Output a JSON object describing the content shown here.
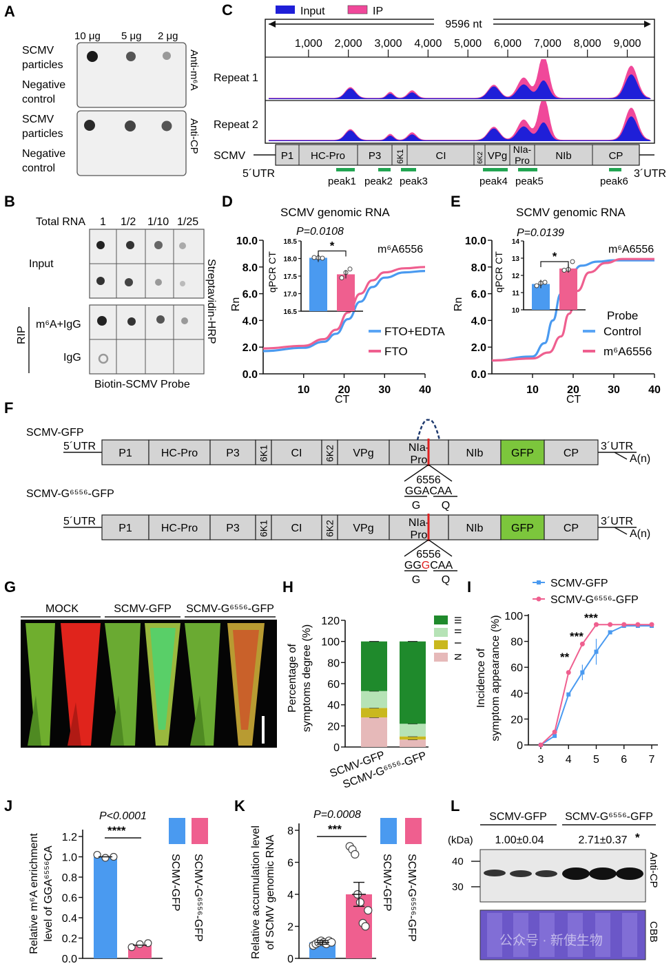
{
  "panels": {
    "A": {
      "label": "A",
      "amounts": [
        "10 μg",
        "5 μg",
        "2 μg"
      ],
      "rows": [
        "SCMV",
        "particles",
        "Negative",
        "control",
        "SCMV",
        "particles",
        "Negative",
        "control"
      ],
      "blot1": "Anti-m⁶A",
      "blot2": "Anti-CP"
    },
    "B": {
      "label": "B",
      "header": "Total RNA",
      "dilutions": [
        "1",
        "1/2",
        "1/10",
        "1/25"
      ],
      "rows": [
        "Input",
        "m⁶A+IgG",
        "IgG"
      ],
      "group": "RIP",
      "side": "Streptavidin-HRP",
      "bottom": "Biotin-SCMV Probe"
    },
    "C": {
      "label": "C",
      "legend": [
        "Input",
        "IP"
      ],
      "length": "9596 nt",
      "ticks": [
        "1,000",
        "2,000",
        "3,000",
        "4,000",
        "5,000",
        "6,000",
        "7,000",
        "8,000",
        "9,000"
      ],
      "tracks": [
        "Repeat 1",
        "Repeat 2"
      ],
      "genome_label": "SCMV",
      "utr5": "5´UTR",
      "utr3": "3´UTR",
      "genes": [
        "P1",
        "HC-Pro",
        "P3",
        "6K1",
        "CI",
        "6K2",
        "VPg",
        "NIa-",
        "Pro",
        "NIb",
        "CP"
      ],
      "peaks": [
        "peak1",
        "peak2",
        "peak3",
        "peak4",
        "peak5",
        "peak6"
      ],
      "colors": {
        "input": "#1f1fd8",
        "ip": "#f0489a"
      }
    },
    "D": {
      "label": "D",
      "title": "SCMV genomic RNA",
      "pval": "P=0.0108",
      "star": "*",
      "site": "m⁶A6556",
      "ylabel": "Rn",
      "xlabel": "CT",
      "inset_ylabel": "qPCR CT",
      "yticks": [
        "10.0",
        "8.0",
        "6.0",
        "4.0",
        "2.0",
        "0.0"
      ],
      "xticks": [
        "10",
        "20",
        "30",
        "40"
      ],
      "inset_yticks": [
        "18.5",
        "18.0",
        "17.5",
        "17.0",
        "16.5"
      ],
      "legend": [
        "FTO+EDTA",
        "FTO"
      ]
    },
    "E": {
      "label": "E",
      "title": "SCMV genomic RNA",
      "pval": "P=0.0139",
      "star": "*",
      "site": "m⁶A6556",
      "ylabel": "Rn",
      "xlabel": "CT",
      "inset_ylabel": "qPCR CT",
      "yticks": [
        "10.0",
        "8.0",
        "6.0",
        "4.0",
        "2.0",
        "0.0"
      ],
      "xticks": [
        "10",
        "20",
        "30",
        "40"
      ],
      "inset_yticks": [
        "14",
        "13",
        "12",
        "11",
        "10"
      ],
      "legend_title": "Probe",
      "legend": [
        "Control",
        "m⁶A6556"
      ]
    },
    "F": {
      "label": "F",
      "construct1": "SCMV-GFP",
      "construct2": "SCMV-G⁶⁵⁵⁶-GFP",
      "utr5": "5´UTR",
      "utr3": "3´UTR",
      "polyA": "A(n)",
      "genes": [
        "P1",
        "HC-Pro",
        "P3",
        "6K1",
        "CI",
        "6K2",
        "VPg",
        "NIa-",
        "Pro",
        "NIb",
        "GFP",
        "CP"
      ],
      "position": "6556",
      "seq_wt": "GGACAA",
      "seq_mut_a": "GG",
      "seq_mut_b": "G",
      "seq_mut_c": "CAA",
      "codons": [
        "G",
        "Q"
      ]
    },
    "G": {
      "label": "G",
      "groups": [
        "MOCK",
        "SCMV-GFP",
        "SCMV-G⁶⁵⁵⁶-GFP"
      ]
    },
    "H": {
      "label": "H",
      "ylabel1": "Percentage of",
      "ylabel2": "symptoms degree (%)",
      "yticks": [
        "120",
        "100",
        "80",
        "60",
        "40",
        "20",
        "0"
      ],
      "categories": [
        "SCMV-GFP",
        "SCMV-G⁶⁵⁵⁶-GFP"
      ],
      "legend": [
        "III",
        "II",
        "I",
        "N"
      ],
      "colors": {
        "III": "#1f8a2c",
        "II": "#b6e3b6",
        "I": "#c9b81e",
        "N": "#e6b9b9"
      }
    },
    "I": {
      "label": "I",
      "legend": [
        "SCMV-GFP",
        "SCMV-G⁶⁵⁵⁶-GFP"
      ],
      "ylabel1": "Incidence of",
      "ylabel2": "symptom appearance (%)",
      "yticks": [
        "100",
        "80",
        "60",
        "40",
        "20",
        "0"
      ],
      "xticks": [
        "3",
        "4",
        "5",
        "6",
        "7"
      ],
      "stars": [
        "**",
        "***",
        "***"
      ]
    },
    "J": {
      "label": "J",
      "pval": "P<0.0001",
      "stars": "****",
      "ylabel1": "Relative m⁶A enrichment",
      "ylabel2": "level of GGA⁶⁵⁵⁶CA",
      "yticks": [
        "1.2",
        "1.0",
        "0.8",
        "0.6",
        "0.4",
        "0.2",
        "0.0"
      ],
      "legend": [
        "SCMV-GFP",
        "SCMV-G⁶⁵⁵⁶-GFP"
      ]
    },
    "K": {
      "label": "K",
      "pval": "P=0.0008",
      "stars": "***",
      "ylabel1": "Relative accumulation level",
      "ylabel2": "of SCMV genomic RNA",
      "yticks": [
        "8",
        "6",
        "4",
        "2",
        "0"
      ],
      "legend": [
        "SCMV-GFP",
        "SCMV-G⁶⁵⁵⁶-GFP"
      ]
    },
    "L": {
      "label": "L",
      "groups": [
        "SCMV-GFP",
        "SCMV-G⁶⁵⁵⁶-GFP"
      ],
      "unit": "(kDa)",
      "quant": [
        "1.00±0.04",
        "2.71±0.37"
      ],
      "star": "*",
      "markers": [
        "40",
        "30"
      ],
      "blots": [
        "Anti-CP",
        "CBB"
      ],
      "watermark": "公众号 · 新使生物"
    }
  },
  "chart_data": [
    {
      "type": "line",
      "panel": "D",
      "title": "SCMV genomic RNA",
      "xlabel": "CT",
      "ylabel": "Rn",
      "xlim": [
        0,
        40
      ],
      "ylim": [
        0,
        10
      ],
      "series": [
        {
          "name": "FTO+EDTA",
          "x": [
            0,
            10,
            15,
            18,
            21,
            24,
            27,
            30,
            35,
            40
          ],
          "y": [
            1.7,
            1.95,
            2.4,
            3.0,
            4.1,
            5.4,
            6.5,
            7.2,
            7.6,
            7.7
          ]
        },
        {
          "name": "FTO",
          "x": [
            0,
            10,
            15,
            18,
            21,
            24,
            27,
            30,
            35,
            40
          ],
          "y": [
            1.9,
            2.1,
            2.6,
            3.3,
            4.6,
            6.0,
            7.0,
            7.6,
            7.9,
            8.0
          ]
        }
      ],
      "inset": {
        "type": "bar",
        "ylabel": "qPCR CT",
        "ylim": [
          16.5,
          18.5
        ],
        "categories": [
          "FTO+EDTA",
          "FTO"
        ],
        "values": [
          18.02,
          17.55
        ],
        "points": [
          [
            18.03,
            18.02,
            18.01
          ],
          [
            17.45,
            17.6,
            17.7
          ]
        ],
        "p_value": "P=0.0108"
      }
    },
    {
      "type": "line",
      "panel": "E",
      "title": "SCMV genomic RNA",
      "xlabel": "CT",
      "ylabel": "Rn",
      "xlim": [
        0,
        40
      ],
      "ylim": [
        0,
        10
      ],
      "series": [
        {
          "name": "Control",
          "x": [
            0,
            10,
            13,
            15,
            17,
            19,
            22,
            26,
            30,
            40
          ],
          "y": [
            1.0,
            1.3,
            2.3,
            4.0,
            6.0,
            7.3,
            8.1,
            8.4,
            8.5,
            8.5
          ]
        },
        {
          "name": "m⁶A6556",
          "x": [
            0,
            10,
            14,
            17,
            19,
            21,
            24,
            28,
            32,
            40
          ],
          "y": [
            1.0,
            1.15,
            1.6,
            2.8,
            4.5,
            6.2,
            7.6,
            8.3,
            8.6,
            8.6
          ]
        }
      ],
      "inset": {
        "type": "bar",
        "ylabel": "qPCR CT",
        "ylim": [
          10,
          14
        ],
        "categories": [
          "Control",
          "m⁶A6556"
        ],
        "values": [
          11.5,
          12.4
        ],
        "points": [
          [
            11.4,
            11.55,
            11.6
          ],
          [
            12.3,
            12.35,
            12.8
          ]
        ],
        "p_value": "P=0.0139"
      }
    },
    {
      "type": "bar",
      "panel": "H",
      "stacked": true,
      "ylabel": "Percentage of symptoms degree (%)",
      "ylim": [
        0,
        120
      ],
      "categories": [
        "SCMV-GFP",
        "SCMV-G⁶⁵⁵⁶-GFP"
      ],
      "series": [
        {
          "name": "N",
          "values": [
            28,
            7
          ]
        },
        {
          "name": "I",
          "values": [
            9,
            3
          ]
        },
        {
          "name": "II",
          "values": [
            16,
            12
          ]
        },
        {
          "name": "III",
          "values": [
            47,
            78
          ]
        }
      ]
    },
    {
      "type": "line",
      "panel": "I",
      "ylabel": "Incidence of symptom appearance (%)",
      "ylim": [
        0,
        100
      ],
      "x": [
        3,
        3.5,
        4,
        4.5,
        5,
        5.5,
        6,
        6.5,
        7
      ],
      "series": [
        {
          "name": "SCMV-GFP",
          "values": [
            0,
            7,
            39,
            56,
            72,
            87,
            92,
            92,
            92
          ]
        },
        {
          "name": "SCMV-G⁶⁵⁵⁶-GFP",
          "values": [
            0,
            10,
            56,
            78,
            93,
            93,
            93,
            93,
            93
          ]
        }
      ]
    },
    {
      "type": "bar",
      "panel": "J",
      "ylabel": "Relative m⁶A enrichment level of GGA⁶⁵⁵⁶CA",
      "ylim": [
        0,
        1.2
      ],
      "categories": [
        "SCMV-GFP",
        "SCMV-G⁶⁵⁵⁶-GFP"
      ],
      "values": [
        1.0,
        0.13
      ],
      "points": [
        [
          1.02,
          0.99,
          1.0
        ],
        [
          0.11,
          0.14,
          0.15
        ]
      ],
      "p_value": "P<0.0001"
    },
    {
      "type": "bar",
      "panel": "K",
      "ylabel": "Relative accumulation level of SCMV genomic RNA",
      "ylim": [
        0,
        8
      ],
      "categories": [
        "SCMV-GFP",
        "SCMV-G⁶⁵⁵⁶-GFP"
      ],
      "values": [
        1.0,
        4.0
      ],
      "points": [
        [
          0.8,
          0.9,
          1.0,
          1.1,
          1.0,
          0.9,
          1.1,
          1.0
        ],
        [
          7.0,
          6.8,
          6.5,
          4.0,
          3.5,
          2.2,
          2.0,
          3.0
        ]
      ],
      "p_value": "P=0.0008"
    }
  ]
}
